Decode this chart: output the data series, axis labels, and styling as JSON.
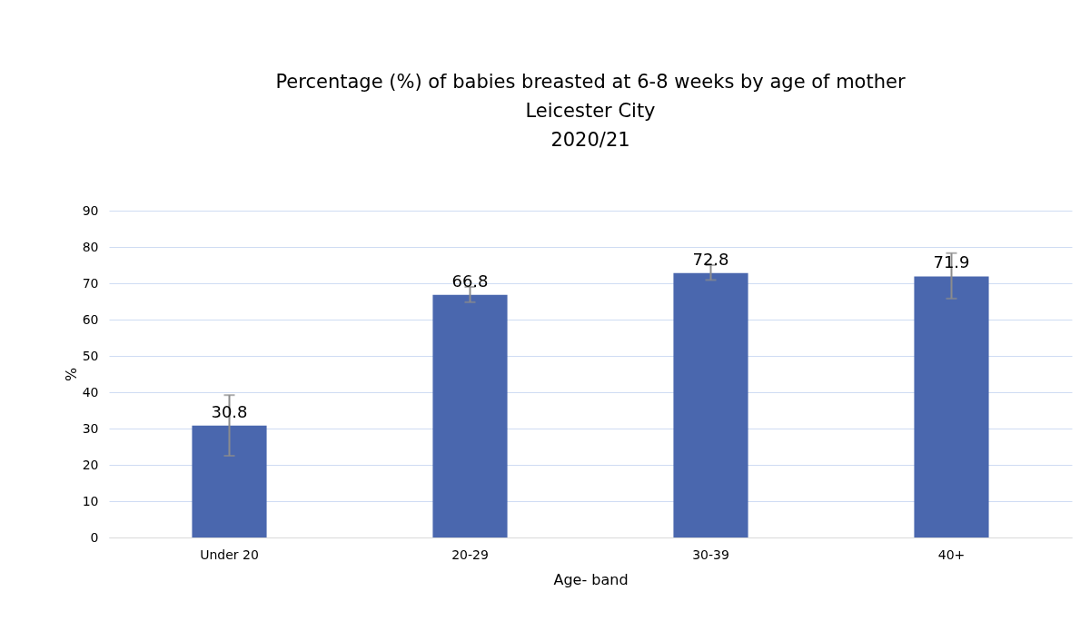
{
  "chart_data": {
    "type": "bar",
    "title": [
      "Percentage (%) of babies breasted at 6-8 weeks by age of mother",
      "Leicester City",
      "2020/21"
    ],
    "xlabel": "Age- band",
    "ylabel": "%",
    "categories": [
      "Under 20",
      "20-29",
      "30-39",
      "40+"
    ],
    "values": [
      30.8,
      66.8,
      72.8,
      71.9
    ],
    "color": "#4a67ae",
    "errors": [
      [
        22.5,
        39.2
      ],
      [
        64.8,
        69.0
      ],
      [
        70.9,
        75.0
      ],
      [
        65.8,
        78.3
      ]
    ],
    "ylim": [
      0,
      90
    ],
    "yticks": [
      0,
      10,
      20,
      30,
      40,
      50,
      60,
      70,
      80,
      90
    ],
    "grid": "y",
    "data_labels": true
  }
}
